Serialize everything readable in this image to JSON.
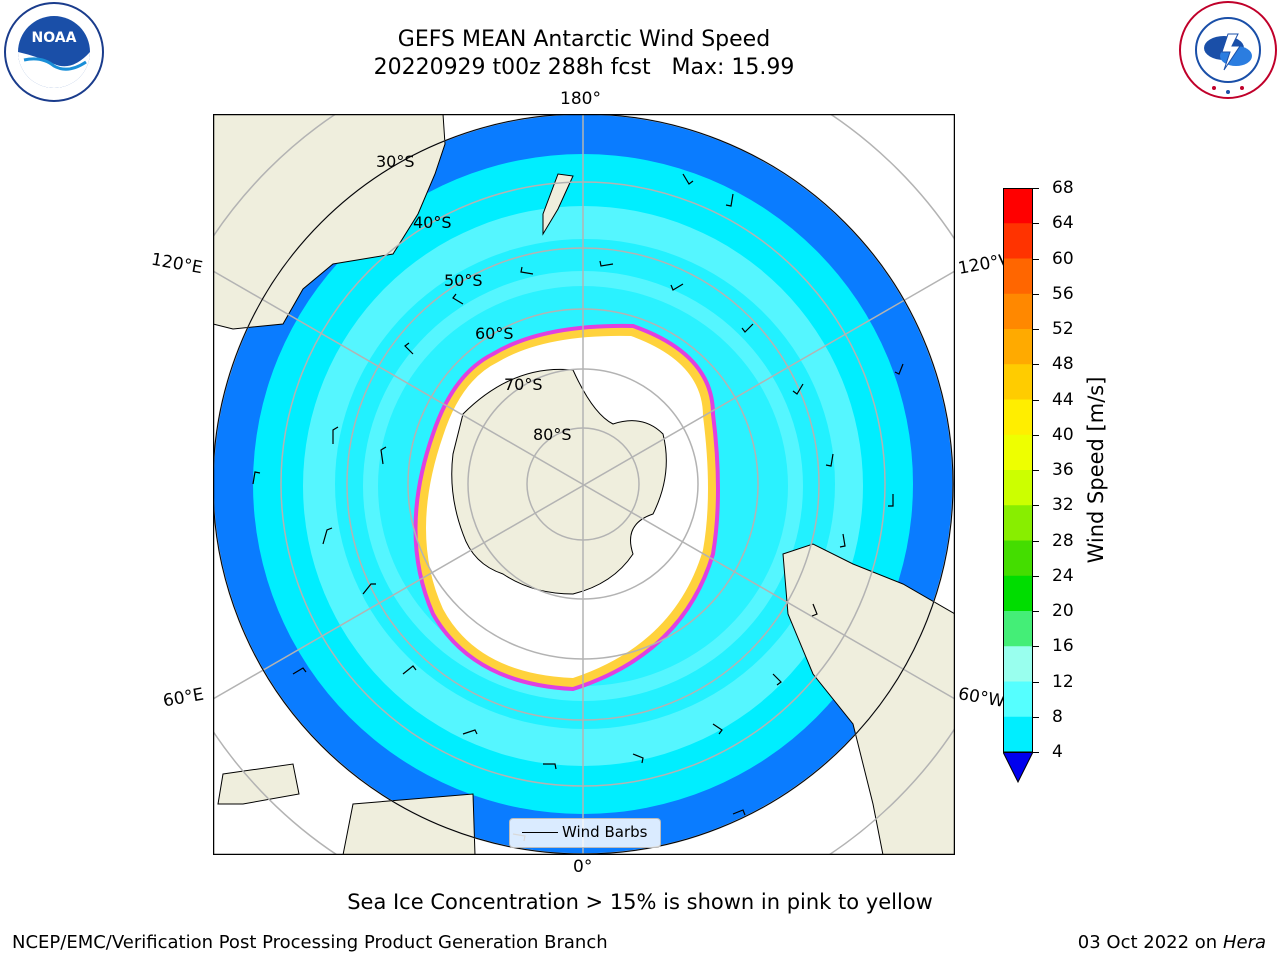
{
  "header": {
    "title_line1": "GEFS MEAN Antarctic Wind Speed",
    "title_line2": "20220929 t00z 288h fcst   Max: 15.99"
  },
  "logos": {
    "left": {
      "name": "NOAA",
      "ring_text": "NATIONAL OCEANIC AND ATMOSPHERIC ADMINISTRATION · U.S. DEPARTMENT OF COMMERCE"
    },
    "right": {
      "name": "NATIONAL WEATHER SERVICE"
    }
  },
  "map": {
    "projection": "south-polar-stereographic",
    "lon_labels": {
      "top": "180°",
      "bottom": "0°",
      "upper_left": "120°E",
      "upper_right": "120°W",
      "lower_left": "60°E",
      "lower_right": "60°W"
    },
    "lat_labels": [
      "30°S",
      "40°S",
      "50°S",
      "60°S",
      "70°S",
      "80°S"
    ],
    "legend_label": "Wind Barbs"
  },
  "colorbar": {
    "title": "Wind Speed [m/s]",
    "ticks": [
      "68",
      "64",
      "60",
      "56",
      "52",
      "48",
      "44",
      "40",
      "36",
      "32",
      "28",
      "24",
      "20",
      "16",
      "12",
      "8",
      "4"
    ],
    "colors": [
      "#ff0000",
      "#ff3300",
      "#ff6600",
      "#ff8800",
      "#ffaa00",
      "#ffcc00",
      "#ffee00",
      "#eeff00",
      "#ccff00",
      "#88ee00",
      "#44dd00",
      "#00dd00",
      "#44ee77",
      "#99ffee",
      "#55ffff",
      "#00eeff",
      "#0077ff"
    ],
    "extend_color": "#0000ee"
  },
  "caption": "Sea Ice Concentration > 15% is shown in pink to yellow",
  "footer": {
    "left": "NCEP/EMC/Verification Post Processing Product Generation Branch",
    "right_date": "03 Oct 2022 on",
    "right_host": "Hera"
  }
}
